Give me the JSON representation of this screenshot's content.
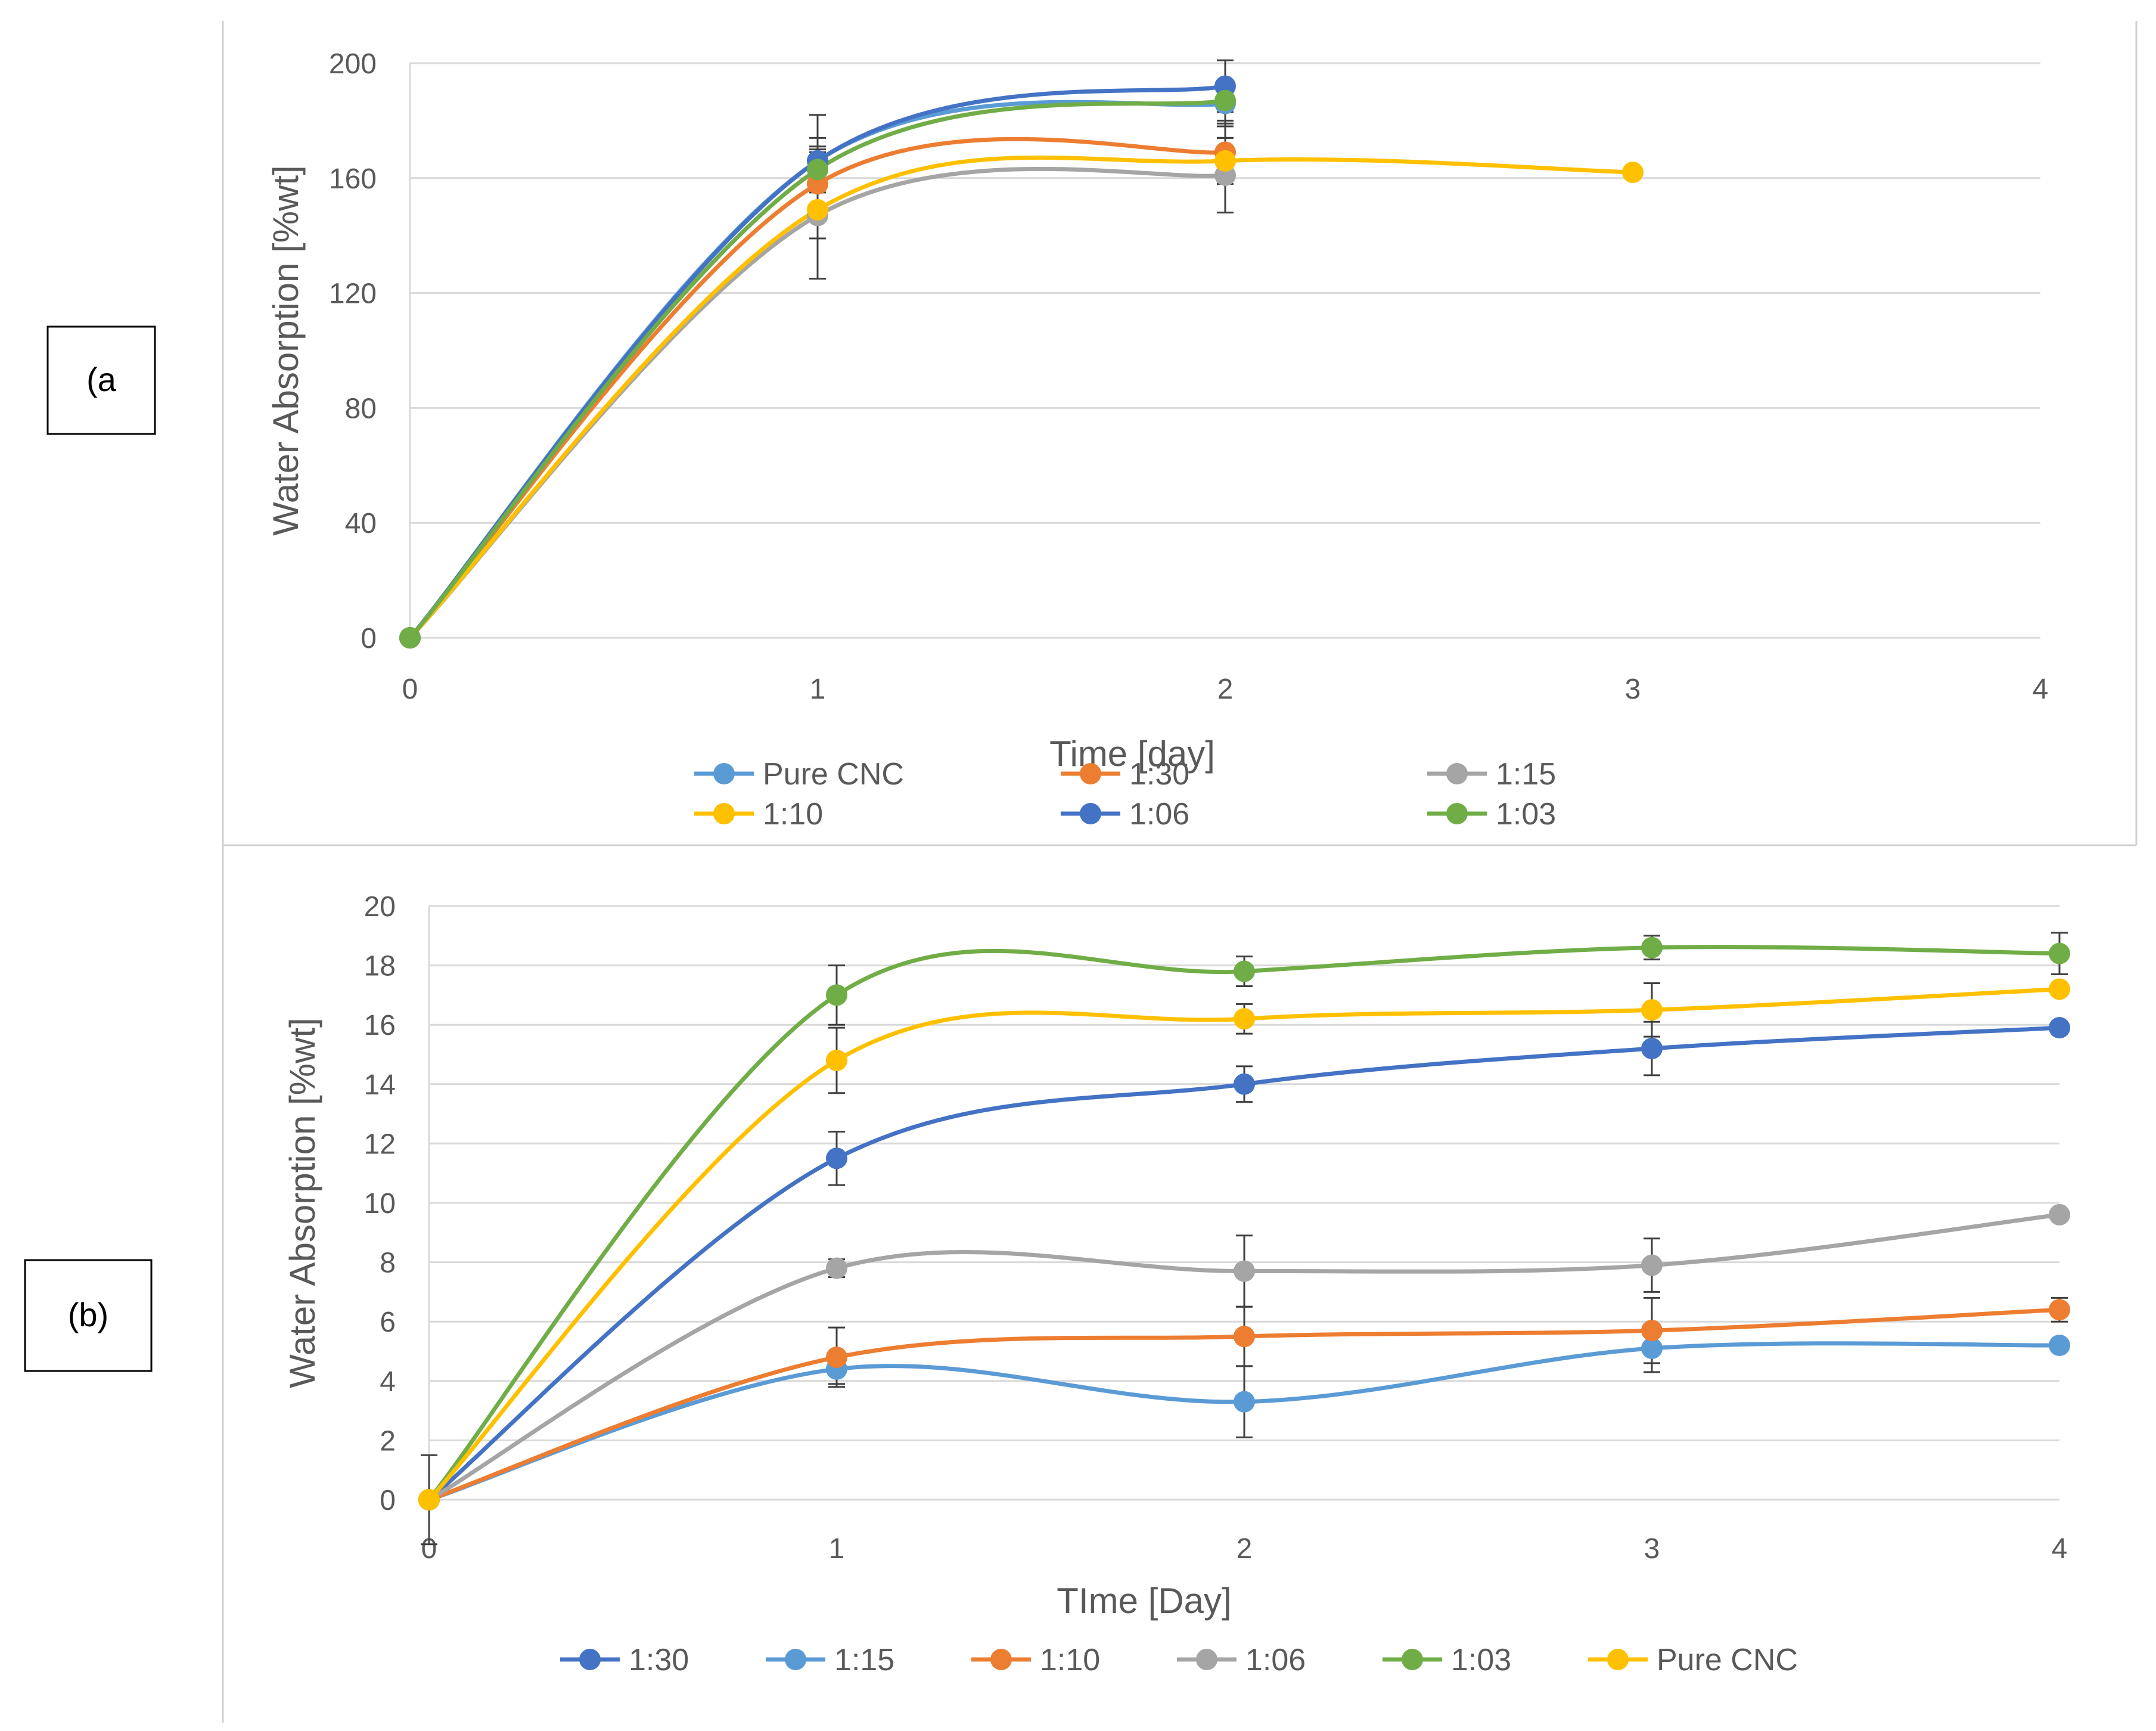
{
  "chart_data": [
    {
      "type": "line",
      "panel_label": "(a",
      "xlabel": "Time [day]",
      "ylabel": "Water Absorption [%wt]",
      "xlim": [
        0,
        4
      ],
      "ylim": [
        0,
        200
      ],
      "xticks": [
        0,
        1,
        2,
        3,
        4
      ],
      "yticks": [
        0,
        40,
        80,
        120,
        160,
        200
      ],
      "grid": true,
      "legend_position": "bottom",
      "series": [
        {
          "name": "Pure CNC",
          "color": "#5B9BD5",
          "x": [
            0,
            1,
            2
          ],
          "y": [
            0,
            166,
            186
          ],
          "err": [
            0,
            8,
            8
          ]
        },
        {
          "name": "1:30",
          "color": "#ED7D31",
          "x": [
            0,
            1,
            2
          ],
          "y": [
            0,
            158,
            169
          ],
          "err": [
            0,
            12,
            10
          ]
        },
        {
          "name": "1:15",
          "color": "#A5A5A5",
          "x": [
            0,
            1,
            2
          ],
          "y": [
            0,
            147,
            161
          ],
          "err": [
            0,
            22,
            13
          ]
        },
        {
          "name": "1:10",
          "color": "#FFC000",
          "x": [
            0,
            1,
            2,
            3
          ],
          "y": [
            0,
            149,
            166,
            162
          ],
          "err": [
            0,
            10,
            8,
            0
          ]
        },
        {
          "name": "1:06",
          "color": "#4472C4",
          "x": [
            0,
            1,
            2
          ],
          "y": [
            0,
            166,
            192
          ],
          "err": [
            0,
            16,
            9
          ]
        },
        {
          "name": "1:03",
          "color": "#70AD47",
          "x": [
            0,
            1,
            2
          ],
          "y": [
            0,
            163,
            187
          ],
          "err": [
            0,
            8,
            7
          ]
        }
      ]
    },
    {
      "type": "line",
      "panel_label": "(b)",
      "xlabel": "TIme [Day]",
      "ylabel": "Water Absorption [%wt]",
      "xlim": [
        0,
        4
      ],
      "ylim": [
        0,
        20
      ],
      "xticks": [
        0,
        1,
        2,
        3,
        4
      ],
      "yticks": [
        0,
        2,
        4,
        6,
        8,
        10,
        12,
        14,
        16,
        18,
        20
      ],
      "grid": true,
      "legend_position": "bottom",
      "series": [
        {
          "name": "1:30",
          "color": "#4472C4",
          "x": [
            0,
            1,
            2,
            3,
            4
          ],
          "y": [
            0,
            11.5,
            14.0,
            15.2,
            15.9
          ],
          "err": [
            0,
            0.9,
            0.6,
            0.9,
            0.2
          ]
        },
        {
          "name": "1:15",
          "color": "#5B9BD5",
          "x": [
            0,
            1,
            2,
            3,
            4
          ],
          "y": [
            0,
            4.4,
            3.3,
            5.1,
            5.2
          ],
          "err": [
            0,
            0.5,
            1.2,
            0.8,
            0.2
          ]
        },
        {
          "name": "1:10",
          "color": "#ED7D31",
          "x": [
            0,
            1,
            2,
            3,
            4
          ],
          "y": [
            0,
            4.8,
            5.5,
            5.7,
            6.4
          ],
          "err": [
            0,
            1.0,
            1.0,
            1.1,
            0.4
          ]
        },
        {
          "name": "1:06",
          "color": "#A5A5A5",
          "x": [
            0,
            1,
            2,
            3,
            4
          ],
          "y": [
            0,
            7.8,
            7.7,
            7.9,
            9.6
          ],
          "err": [
            1.5,
            0.3,
            1.2,
            0.9,
            0.1
          ]
        },
        {
          "name": "1:03",
          "color": "#70AD47",
          "x": [
            0,
            1,
            2,
            3,
            4
          ],
          "y": [
            0,
            17.0,
            17.8,
            18.6,
            18.4
          ],
          "err": [
            0,
            1.0,
            0.5,
            0.4,
            0.7
          ]
        },
        {
          "name": "Pure CNC",
          "color": "#FFC000",
          "x": [
            0,
            1,
            2,
            3,
            4
          ],
          "y": [
            0,
            14.8,
            16.2,
            16.5,
            17.2
          ],
          "err": [
            0,
            1.1,
            0.5,
            0.9,
            0.2
          ]
        }
      ]
    }
  ]
}
